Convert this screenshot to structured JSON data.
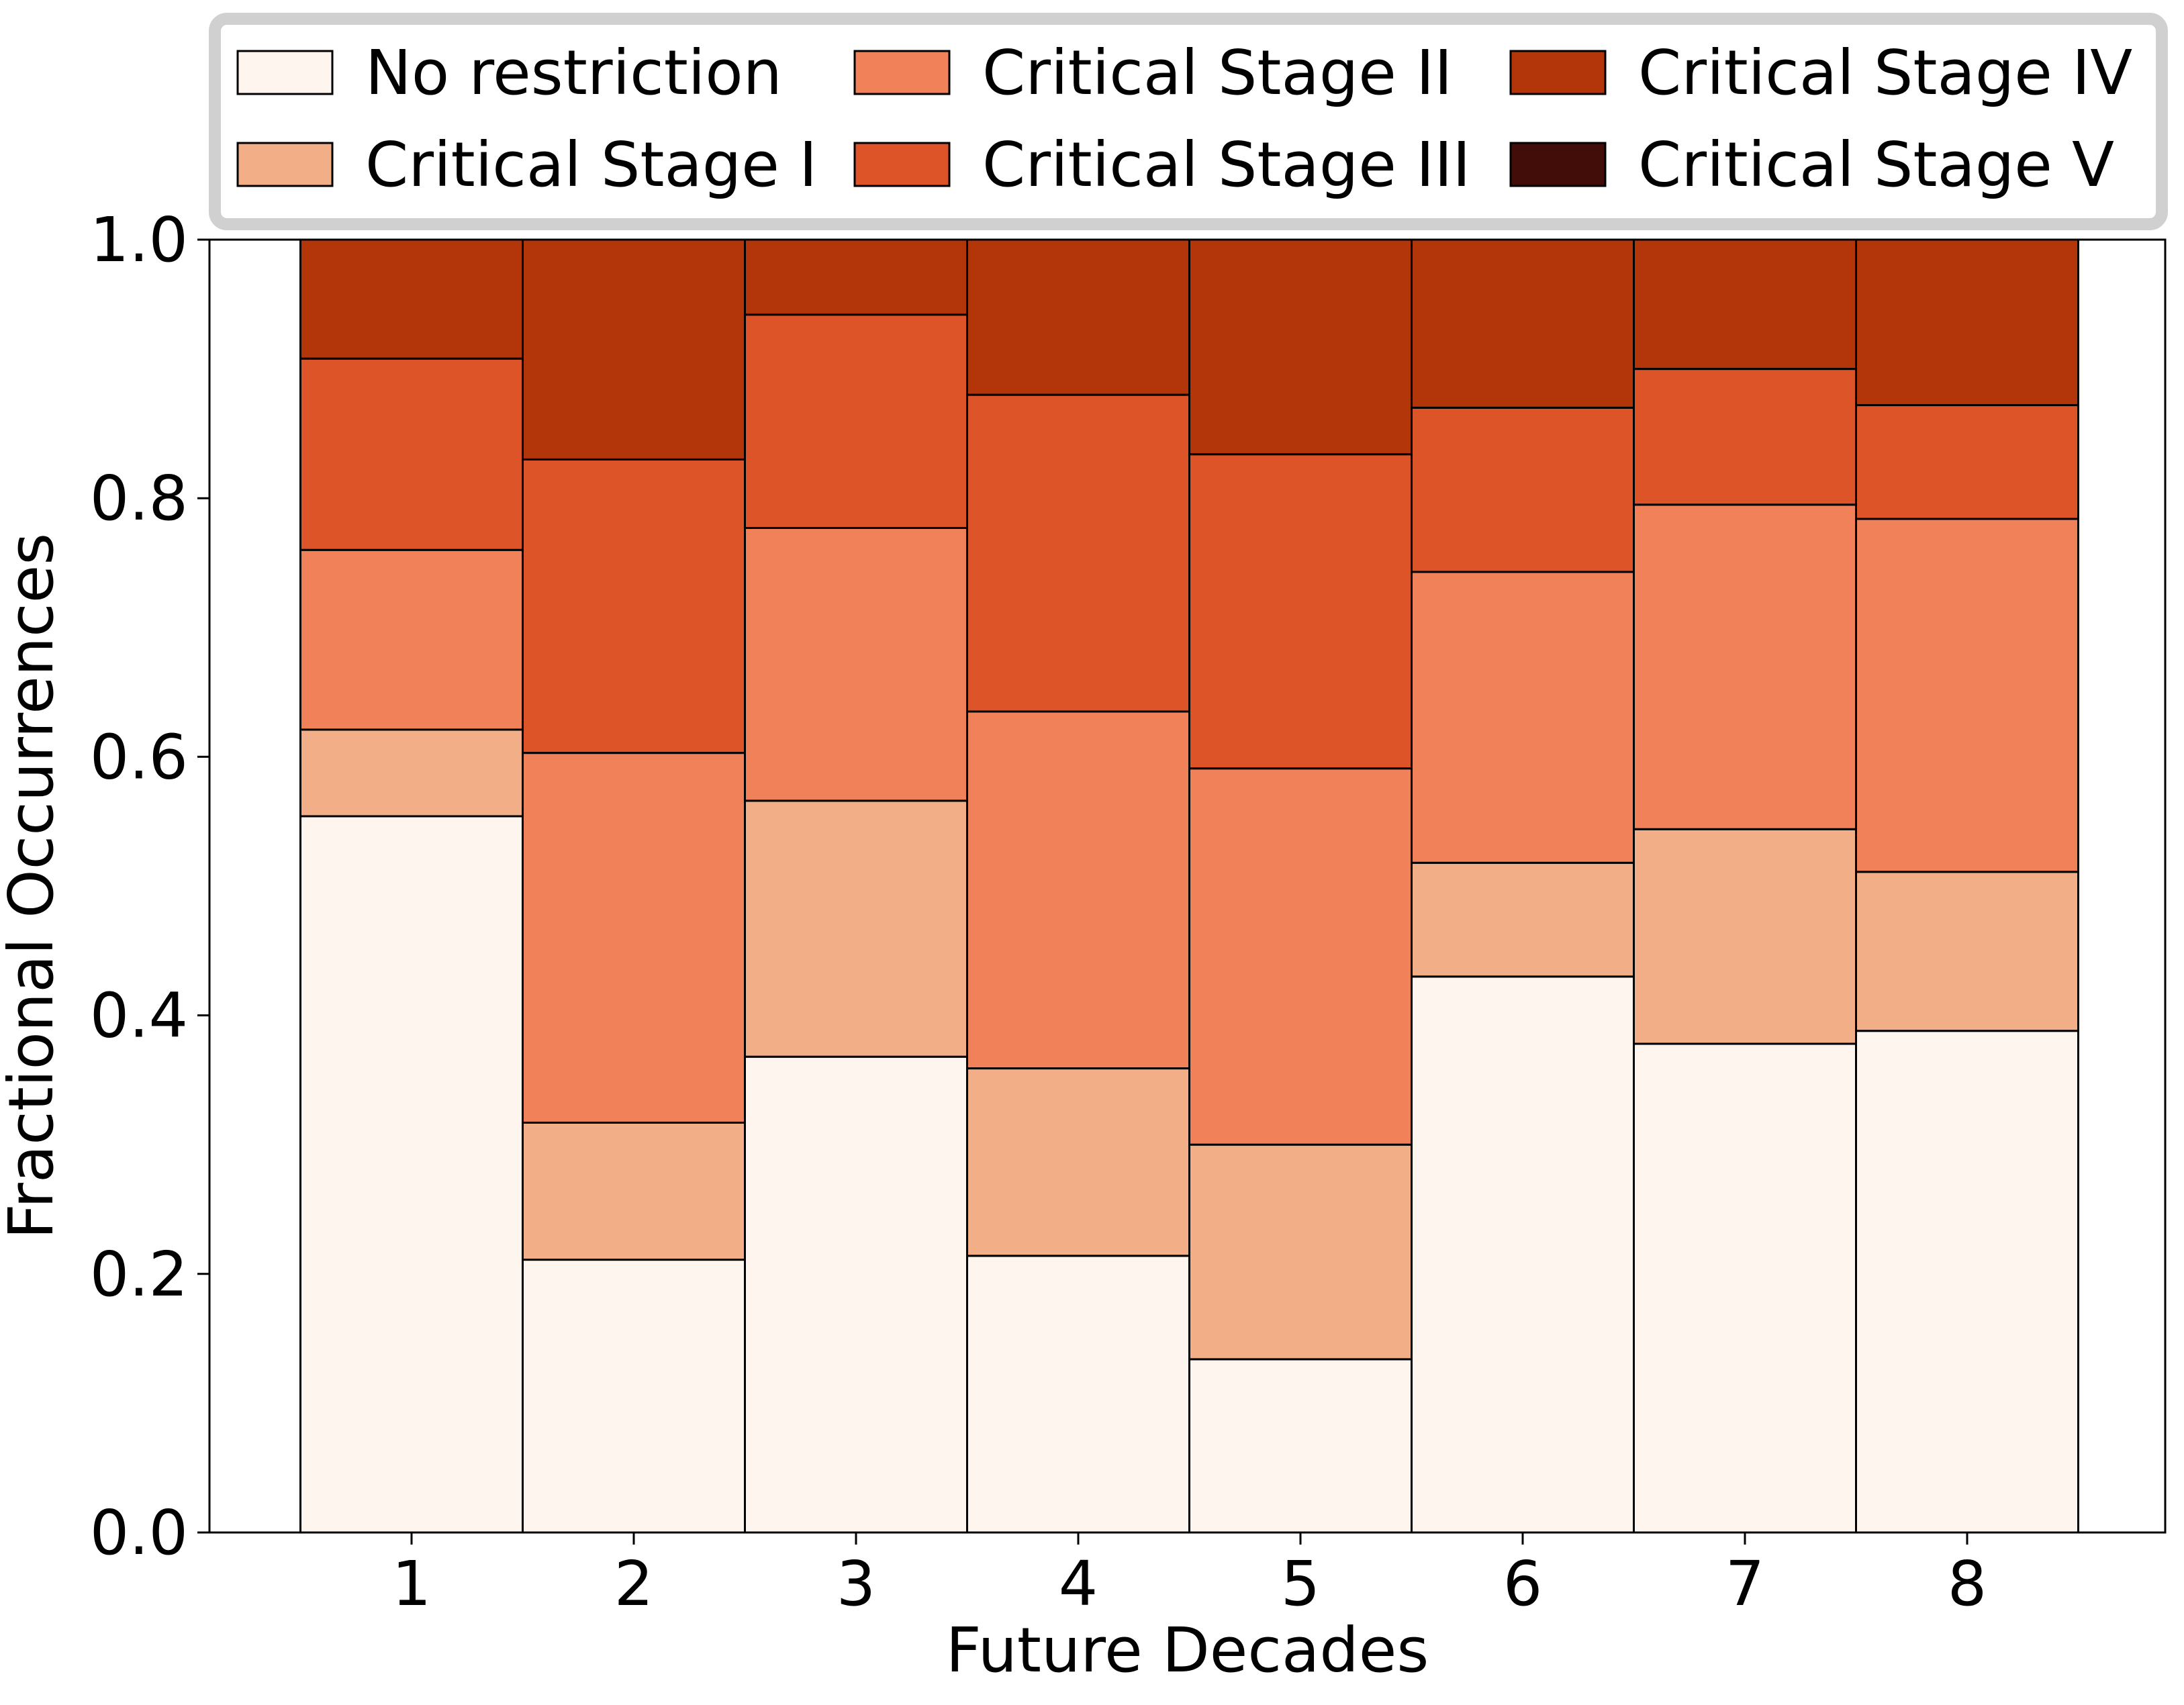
{
  "chart_data": {
    "type": "bar",
    "stacked": true,
    "title": "",
    "xlabel": "Future Decades",
    "ylabel": "Fractional Occurrences",
    "categories": [
      "1",
      "2",
      "3",
      "4",
      "5",
      "6",
      "7",
      "8"
    ],
    "ylim": [
      0.0,
      1.0
    ],
    "yticks": [
      "0.0",
      "0.2",
      "0.4",
      "0.6",
      "0.8",
      "1.0"
    ],
    "grid": false,
    "legend_position": "top",
    "series": [
      {
        "name": "No restriction",
        "color": "#fff5ef",
        "values": [
          0.554,
          0.211,
          0.368,
          0.214,
          0.134,
          0.43,
          0.378,
          0.388
        ]
      },
      {
        "name": "Critical Stage I",
        "color": "#f2ae87",
        "values": [
          0.067,
          0.106,
          0.198,
          0.145,
          0.166,
          0.088,
          0.166,
          0.123
        ]
      },
      {
        "name": "Critical Stage II",
        "color": "#f08158",
        "values": [
          0.139,
          0.286,
          0.211,
          0.276,
          0.291,
          0.225,
          0.251,
          0.273
        ]
      },
      {
        "name": "Critical Stage III",
        "color": "#dd5429",
        "values": [
          0.148,
          0.227,
          0.165,
          0.245,
          0.243,
          0.127,
          0.105,
          0.088
        ]
      },
      {
        "name": "Critical Stage IV",
        "color": "#b3350a",
        "values": [
          0.092,
          0.17,
          0.058,
          0.12,
          0.166,
          0.13,
          0.1,
          0.128
        ]
      },
      {
        "name": "Critical Stage V",
        "color": "#420c08",
        "values": [
          0,
          0,
          0,
          0,
          0,
          0,
          0,
          0
        ]
      }
    ]
  }
}
